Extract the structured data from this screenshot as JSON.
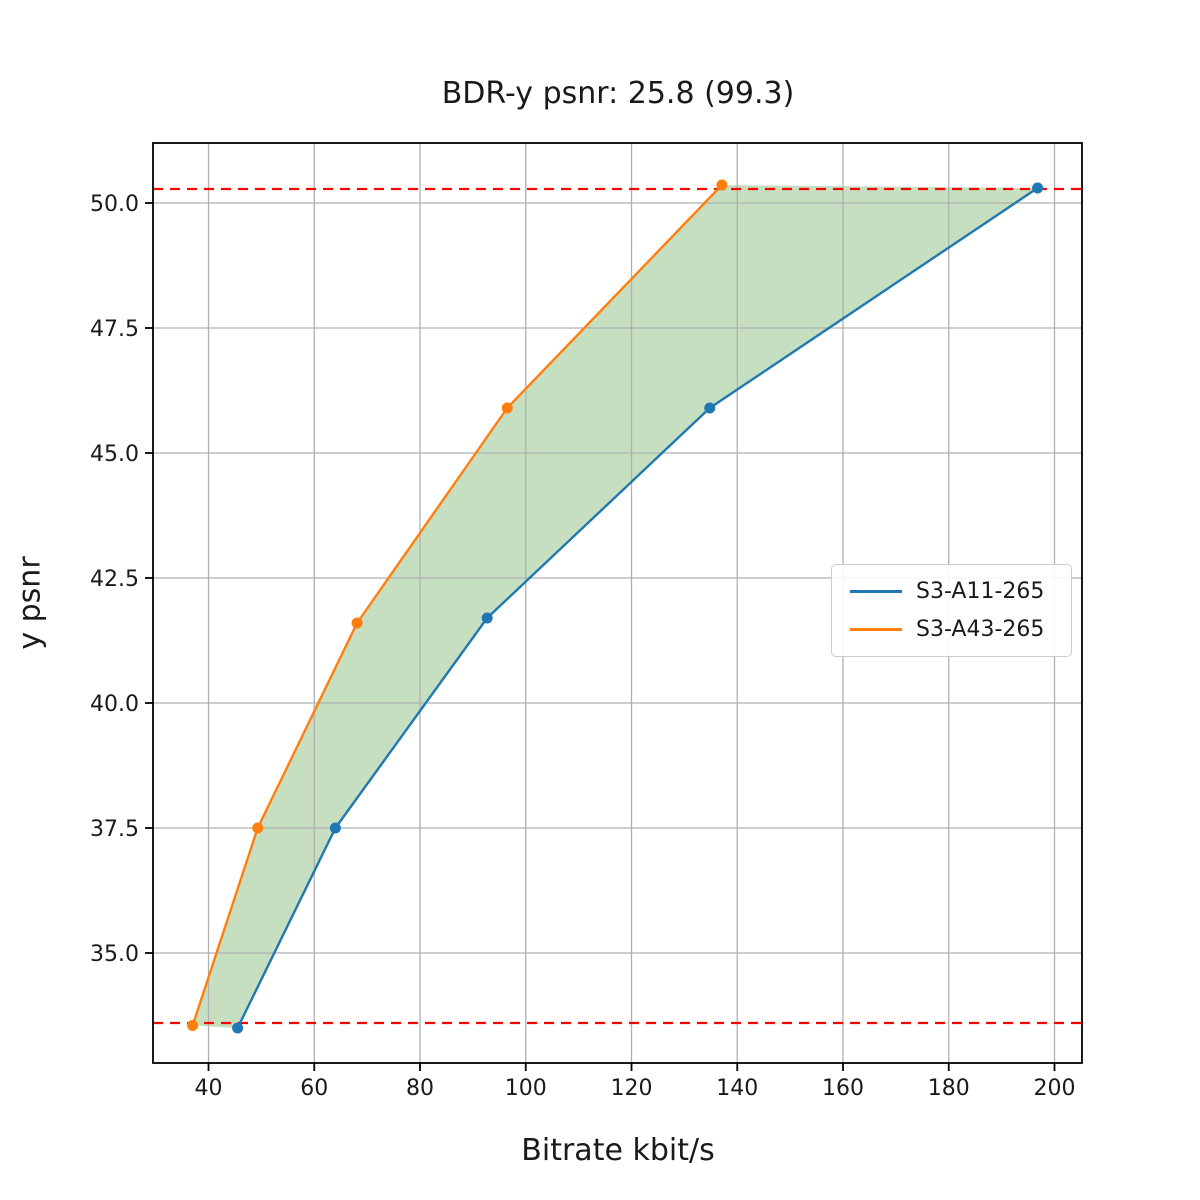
{
  "title": "BDR-y psnr: 25.8 (99.3)",
  "colors": {
    "series1": "#1f77b4",
    "series2": "#ff7f0e",
    "fill": "#c5dfc0",
    "hline": "#ff0000",
    "grid": "#b0b0b0",
    "spine": "#000000",
    "text": "#1a1a1a",
    "background": "#ffffff",
    "legend_border": "#cccccc"
  },
  "chart_data": {
    "type": "line",
    "title": "BDR-y psnr: 25.8 (99.3)",
    "xlabel": "Bitrate kbit/s",
    "ylabel": "y psnr",
    "xlim": [
      29.5,
      205.2
    ],
    "ylim": [
      32.8,
      51.2
    ],
    "xticks": [
      40,
      60,
      80,
      100,
      120,
      140,
      160,
      180,
      200
    ],
    "xtick_labels": [
      "40",
      "60",
      "80",
      "100",
      "120",
      "140",
      "160",
      "180",
      "200"
    ],
    "yticks": [
      35.0,
      37.5,
      40.0,
      42.5,
      45.0,
      47.5,
      50.0
    ],
    "ytick_labels": [
      "35.0",
      "37.5",
      "40.0",
      "42.5",
      "45.0",
      "47.5",
      "50.0"
    ],
    "grid": true,
    "legend_position": "center-right",
    "series": [
      {
        "name": "S3-A11-265",
        "color": "#1f77b4",
        "points": [
          [
            45.5,
            33.5
          ],
          [
            64.0,
            37.5
          ],
          [
            92.7,
            41.7
          ],
          [
            134.8,
            45.9
          ],
          [
            196.8,
            50.3
          ]
        ]
      },
      {
        "name": "S3-A43-265",
        "color": "#ff7f0e",
        "points": [
          [
            37.0,
            33.55
          ],
          [
            49.3,
            37.5
          ],
          [
            68.1,
            41.6
          ],
          [
            96.5,
            45.9
          ],
          [
            137.1,
            50.36
          ]
        ]
      }
    ],
    "hlines": {
      "top": 50.28,
      "bottom": 33.6,
      "style": "dashed",
      "color": "#ff0000"
    },
    "fill_between_series": true
  }
}
